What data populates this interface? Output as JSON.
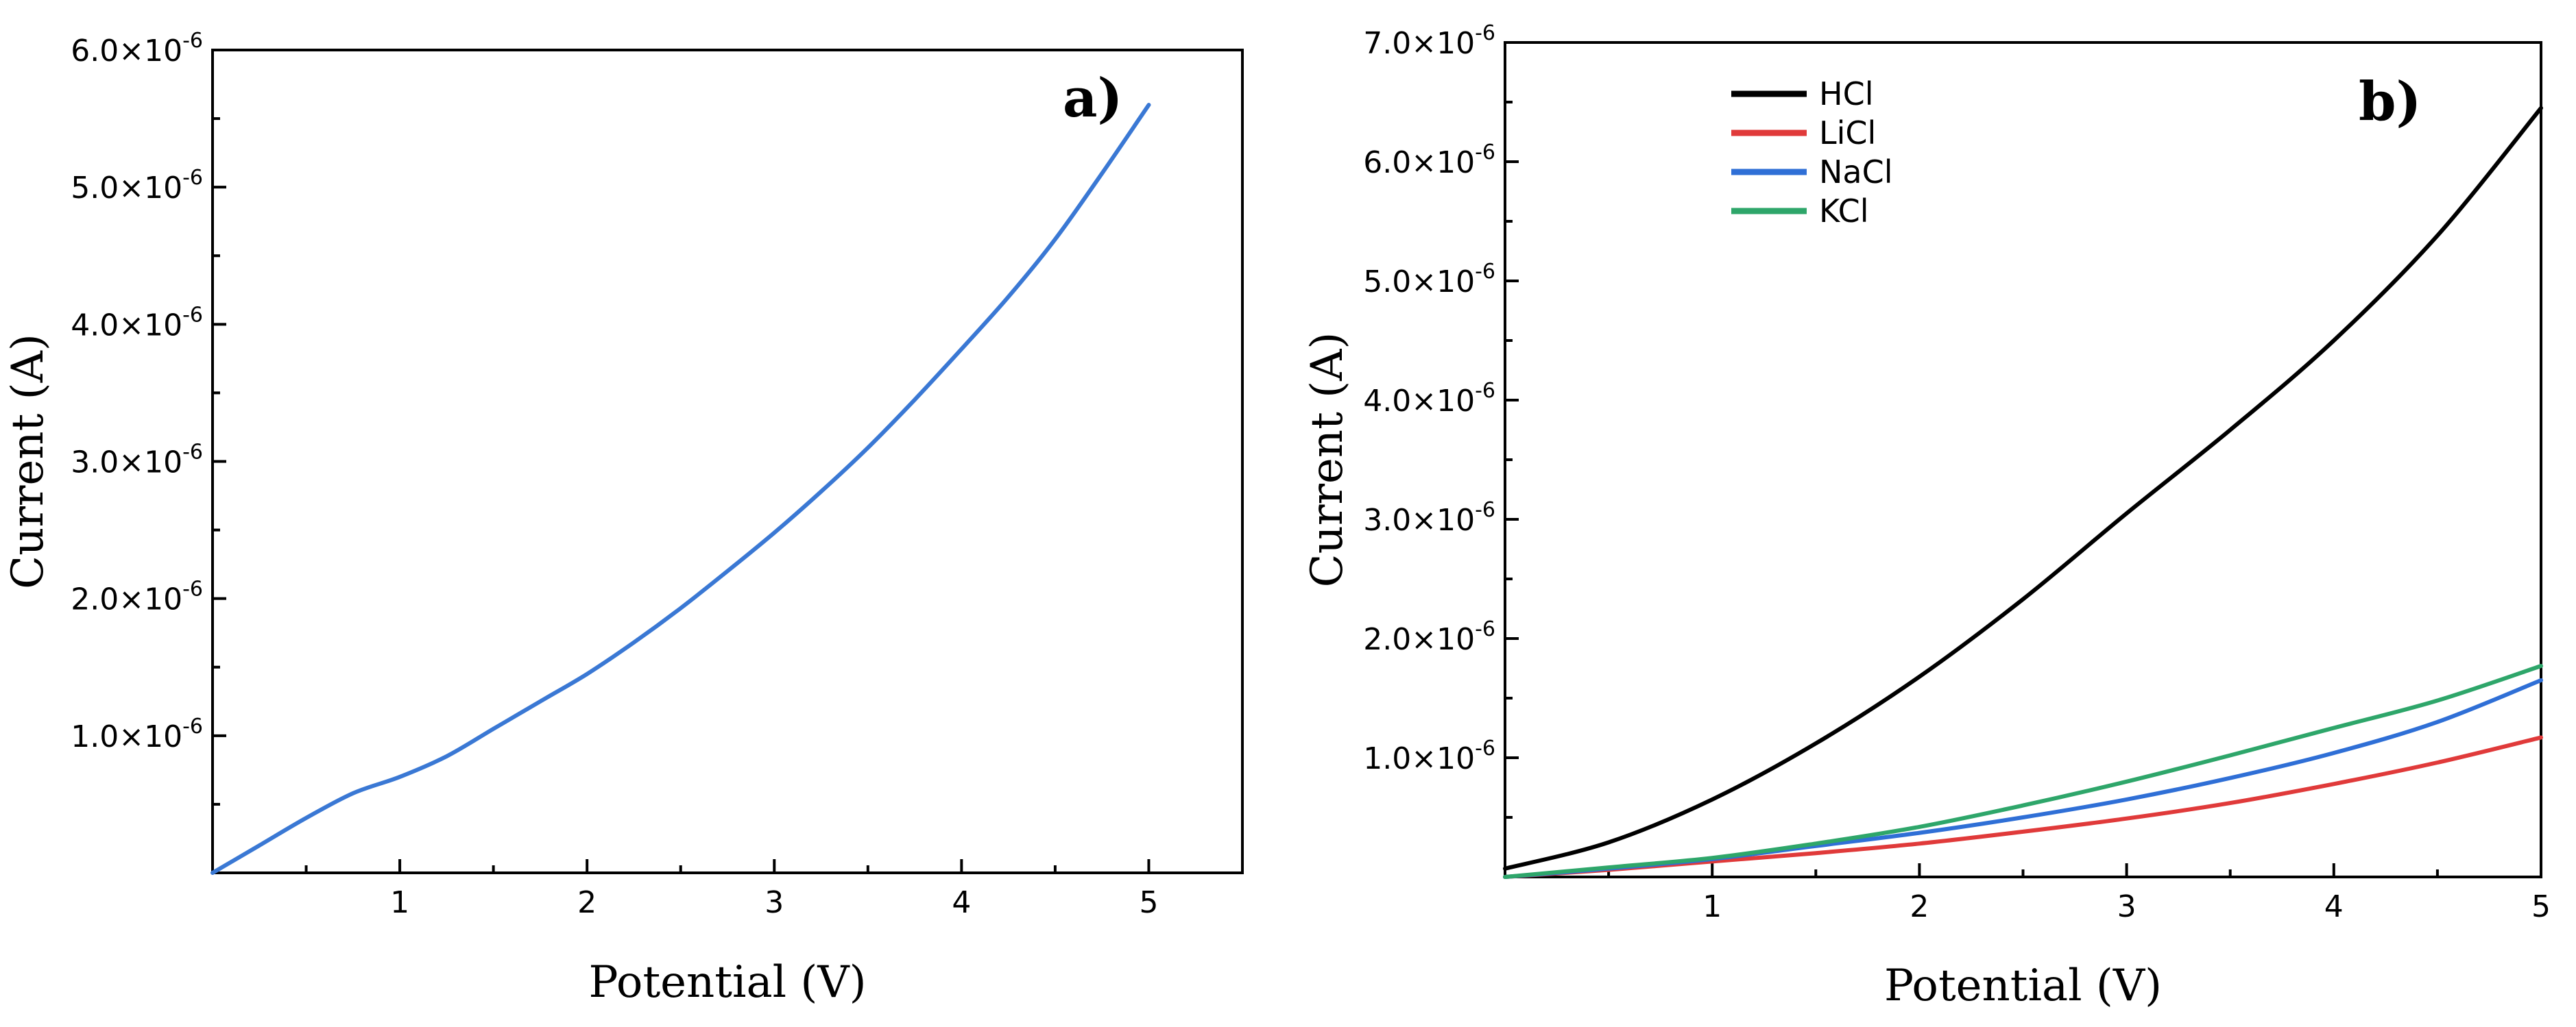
{
  "chart_data": [
    {
      "type": "line",
      "panel_label": "a)",
      "title": "",
      "xlabel": "Potential (V)",
      "ylabel": "Current (A)",
      "xlim": [
        0,
        5.5
      ],
      "ylim": [
        0,
        6e-06
      ],
      "x_ticks": [
        1,
        2,
        3,
        4,
        5
      ],
      "x_tick_labels": [
        "1",
        "2",
        "3",
        "4",
        "5"
      ],
      "y_ticks": [
        1e-06,
        2e-06,
        3e-06,
        4e-06,
        5e-06,
        6e-06
      ],
      "y_tick_labels": [
        {
          "mantissa": "1.0×10",
          "exp": "-6"
        },
        {
          "mantissa": "2.0×10",
          "exp": "-6"
        },
        {
          "mantissa": "3.0×10",
          "exp": "-6"
        },
        {
          "mantissa": "4.0×10",
          "exp": "-6"
        },
        {
          "mantissa": "5.0×10",
          "exp": "-6"
        },
        {
          "mantissa": "6.0×10",
          "exp": "-6"
        }
      ],
      "series": [
        {
          "name": "",
          "color": "#3a78d4",
          "x": [
            0,
            0.25,
            0.5,
            0.75,
            1.0,
            1.25,
            1.5,
            1.75,
            2.0,
            2.25,
            2.5,
            2.75,
            3.0,
            3.25,
            3.5,
            3.75,
            4.0,
            4.25,
            4.5,
            4.75,
            5.0
          ],
          "y": [
            0,
            2e-07,
            4e-07,
            5.8e-07,
            7e-07,
            8.5e-07,
            1.05e-06,
            1.25e-06,
            1.45e-06,
            1.68e-06,
            1.93e-06,
            2.2e-06,
            2.48e-06,
            2.78e-06,
            3.1e-06,
            3.45e-06,
            3.82e-06,
            4.2e-06,
            4.62e-06,
            5.1e-06,
            5.6e-06
          ]
        }
      ]
    },
    {
      "type": "line",
      "panel_label": "b)",
      "title": "",
      "xlabel": "Potential (V)",
      "ylabel": "Current (A)",
      "xlim": [
        0,
        5
      ],
      "ylim": [
        0,
        7e-06
      ],
      "x_ticks": [
        1,
        2,
        3,
        4,
        5
      ],
      "x_tick_labels": [
        "1",
        "2",
        "3",
        "4",
        "5"
      ],
      "y_ticks": [
        1e-06,
        2e-06,
        3e-06,
        4e-06,
        5e-06,
        6e-06,
        7e-06
      ],
      "y_tick_labels": [
        {
          "mantissa": "1.0×10",
          "exp": "-6"
        },
        {
          "mantissa": "2.0×10",
          "exp": "-6"
        },
        {
          "mantissa": "3.0×10",
          "exp": "-6"
        },
        {
          "mantissa": "4.0×10",
          "exp": "-6"
        },
        {
          "mantissa": "5.0×10",
          "exp": "-6"
        },
        {
          "mantissa": "6.0×10",
          "exp": "-6"
        },
        {
          "mantissa": "7.0×10",
          "exp": "-6"
        }
      ],
      "legend_position": "top-left",
      "series": [
        {
          "name": "HCl",
          "color": "#000000",
          "x": [
            0,
            0.5,
            1.0,
            1.5,
            2.0,
            2.5,
            3.0,
            3.5,
            4.0,
            4.5,
            5.0
          ],
          "y": [
            7e-08,
            2.9e-07,
            6.5e-07,
            1.12e-06,
            1.68e-06,
            2.33e-06,
            3.05e-06,
            3.75e-06,
            4.5e-06,
            5.38e-06,
            6.45e-06
          ]
        },
        {
          "name": "LiCl",
          "color": "#e03a3a",
          "x": [
            0,
            0.5,
            1.0,
            1.5,
            2.0,
            2.5,
            3.0,
            3.5,
            4.0,
            4.5,
            5.0
          ],
          "y": [
            0,
            6e-08,
            1.3e-07,
            2e-07,
            2.8e-07,
            3.8e-07,
            4.9e-07,
            6.2e-07,
            7.8e-07,
            9.6e-07,
            1.17e-06
          ]
        },
        {
          "name": "NaCl",
          "color": "#2f6fd6",
          "x": [
            0,
            0.5,
            1.0,
            1.5,
            2.0,
            2.5,
            3.0,
            3.5,
            4.0,
            4.5,
            5.0
          ],
          "y": [
            0,
            7e-08,
            1.5e-07,
            2.6e-07,
            3.7e-07,
            5e-07,
            6.5e-07,
            8.3e-07,
            1.04e-06,
            1.3e-06,
            1.65e-06
          ]
        },
        {
          "name": "KCl",
          "color": "#2ea66a",
          "x": [
            0,
            0.5,
            1.0,
            1.5,
            2.0,
            2.5,
            3.0,
            3.5,
            4.0,
            4.5,
            5.0
          ],
          "y": [
            0,
            8e-08,
            1.6e-07,
            2.8e-07,
            4.2e-07,
            6e-07,
            8e-07,
            1.02e-06,
            1.25e-06,
            1.48e-06,
            1.77e-06
          ]
        }
      ]
    }
  ]
}
